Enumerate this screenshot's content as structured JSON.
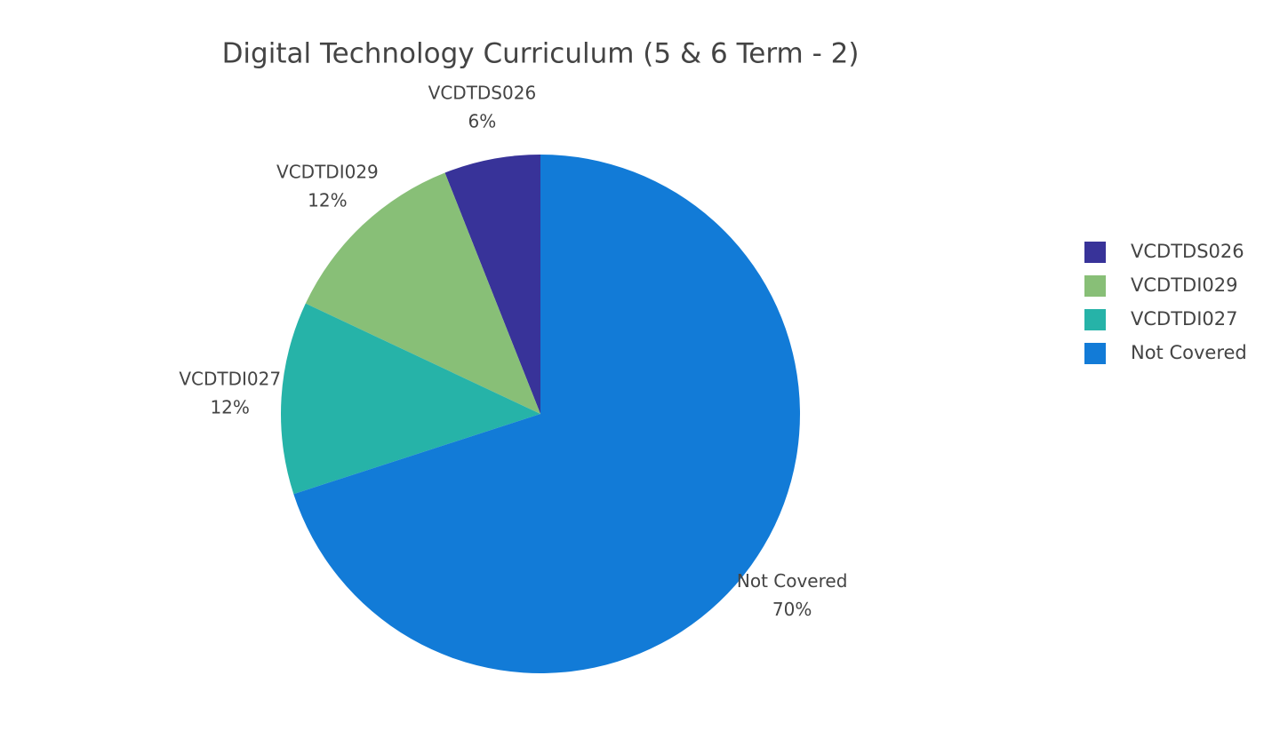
{
  "chart_data": {
    "type": "pie",
    "title": "Digital Technology Curriculum (5 & 6 Term - 2)",
    "categories": [
      "VCDTDS026",
      "VCDTDI029",
      "VCDTDI027",
      "Not Covered"
    ],
    "values": [
      6,
      12,
      12,
      70
    ],
    "value_labels": [
      "6%",
      "12%",
      "12%",
      "70%"
    ],
    "colors": [
      "#383399",
      "#88bf77",
      "#26b3a8",
      "#127bd7"
    ],
    "legend": "right"
  }
}
